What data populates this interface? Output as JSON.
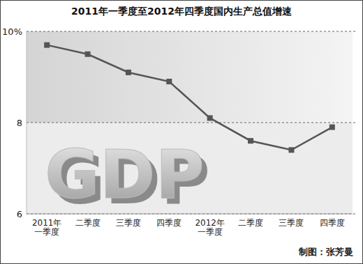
{
  "chart_data": {
    "type": "line",
    "title": "2011年一季度至2012年四季度国内生产总值增速",
    "categories": [
      "2011年\n一季度",
      "二季度",
      "三季度",
      "四季度",
      "2012年\n一季度",
      "二季度",
      "三季度",
      "四季度"
    ],
    "values": [
      9.7,
      9.5,
      9.1,
      8.9,
      8.1,
      7.6,
      7.4,
      7.9
    ],
    "color": "#555555",
    "marker": "square",
    "ylim": [
      6,
      10
    ],
    "yticks": [
      6,
      8,
      {
        "value": 10,
        "label": "10%"
      }
    ],
    "grid": true,
    "annotations": [
      "GDP",
      "制图：张芳曼"
    ]
  }
}
